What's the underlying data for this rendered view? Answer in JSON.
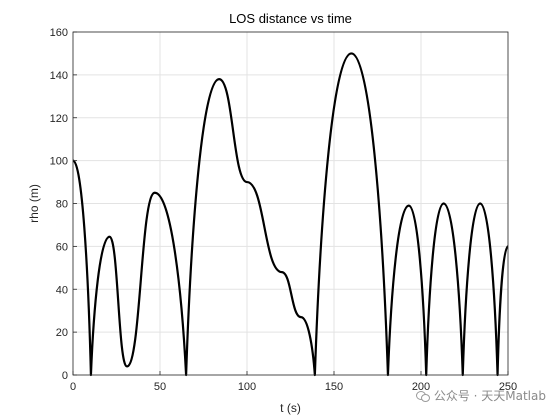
{
  "chart_data": {
    "type": "line",
    "title": "LOS distance vs time",
    "xlabel": "t (s)",
    "ylabel": "rho (m)",
    "xlim": [
      0,
      250
    ],
    "ylim": [
      0,
      160
    ],
    "xticks": [
      "0",
      "50",
      "100",
      "150",
      "200",
      "250"
    ],
    "yticks": [
      "0",
      "20",
      "40",
      "60",
      "80",
      "100",
      "120",
      "140",
      "160"
    ],
    "grid": true,
    "line_color": "#000000",
    "series": [
      {
        "x": [
          0,
          10.3,
          21,
          31,
          47,
          65,
          84,
          100,
          120,
          131,
          139,
          160,
          181,
          193,
          203,
          213,
          224,
          234,
          244,
          250
        ],
        "y": [
          100,
          0,
          64.5,
          4,
          85,
          0,
          138,
          90,
          48,
          27,
          0,
          150,
          0,
          79,
          0,
          80,
          0,
          80,
          0,
          60
        ]
      }
    ]
  },
  "watermark": {
    "text": "公众号 · 天天Matlab"
  }
}
